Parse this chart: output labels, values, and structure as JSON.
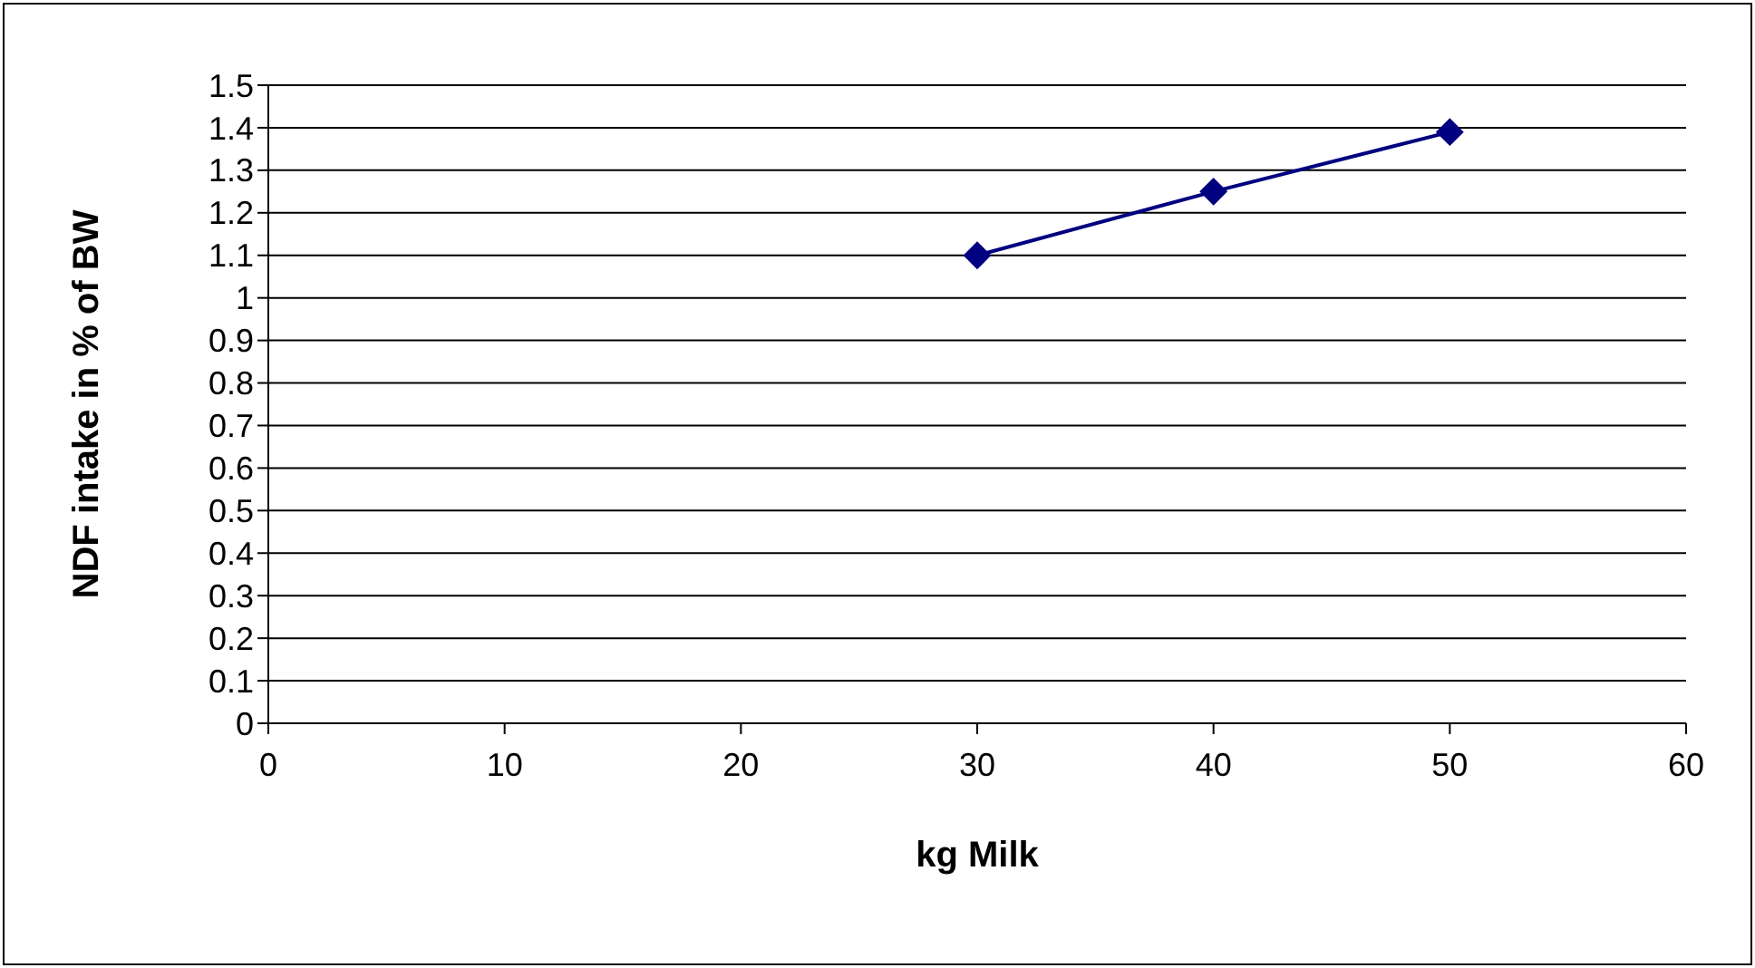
{
  "chart_data": {
    "type": "line",
    "xlabel": "kg Milk",
    "ylabel": "NDF intake in % of BW",
    "x": [
      30,
      40,
      50
    ],
    "series": [
      {
        "color": "#000080",
        "values": [
          1.1,
          1.25,
          1.39
        ]
      }
    ],
    "xlim": [
      0,
      60
    ],
    "xticks": [
      0,
      10,
      20,
      30,
      40,
      50,
      60
    ],
    "ylim": [
      0,
      1.5
    ],
    "yticks": [
      0,
      0.1,
      0.2,
      0.3,
      0.4,
      0.5,
      0.6,
      0.7,
      0.8,
      0.9,
      1,
      1.1,
      1.2,
      1.3,
      1.4,
      1.5
    ],
    "grid": "y",
    "marker": "diamond",
    "line_style": "solid"
  }
}
